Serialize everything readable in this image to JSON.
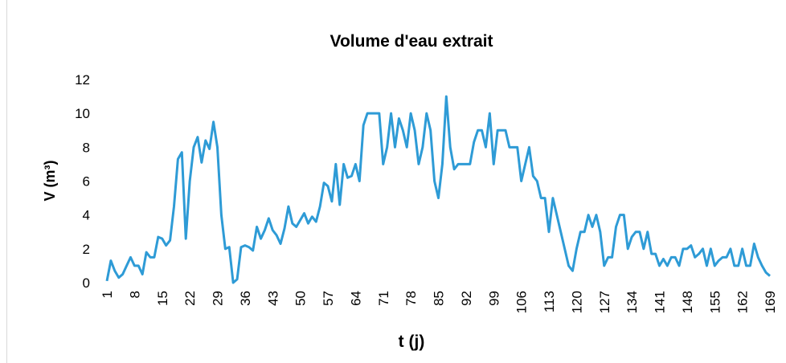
{
  "chart_data": {
    "type": "line",
    "title": "Volume d'eau extrait",
    "x_label": "t (j)",
    "y_label": "V (m³)",
    "x": [
      1,
      2,
      3,
      4,
      5,
      6,
      7,
      8,
      9,
      10,
      11,
      12,
      13,
      14,
      15,
      16,
      17,
      18,
      19,
      20,
      21,
      22,
      23,
      24,
      25,
      26,
      27,
      28,
      29,
      30,
      31,
      32,
      33,
      34,
      35,
      36,
      37,
      38,
      39,
      40,
      41,
      42,
      43,
      44,
      45,
      46,
      47,
      48,
      49,
      50,
      51,
      52,
      53,
      54,
      55,
      56,
      57,
      58,
      59,
      60,
      61,
      62,
      63,
      64,
      65,
      66,
      67,
      68,
      69,
      70,
      71,
      72,
      73,
      74,
      75,
      76,
      77,
      78,
      79,
      80,
      81,
      82,
      83,
      84,
      85,
      86,
      87,
      88,
      89,
      90,
      91,
      92,
      93,
      94,
      95,
      96,
      97,
      98,
      99,
      100,
      101,
      102,
      103,
      104,
      105,
      106,
      107,
      108,
      109,
      110,
      111,
      112,
      113,
      114,
      115,
      116,
      117,
      118,
      119,
      120,
      121,
      122,
      123,
      124,
      125,
      126,
      127,
      128,
      129,
      130,
      131,
      132,
      133,
      134,
      135,
      136,
      137,
      138,
      139,
      140,
      141,
      142,
      143,
      144,
      145,
      146,
      147,
      148,
      149,
      150,
      151,
      152,
      153,
      154,
      155,
      156,
      157,
      158,
      159,
      160,
      161,
      162,
      163,
      164,
      165,
      166,
      167,
      168,
      169
    ],
    "series": [
      {
        "name": "V",
        "color": "#2e9bd6",
        "values": [
          0.1,
          1.3,
          0.7,
          0.3,
          0.5,
          1.0,
          1.5,
          1.0,
          1.0,
          0.5,
          1.8,
          1.5,
          1.5,
          2.7,
          2.6,
          2.2,
          2.5,
          4.5,
          7.3,
          7.7,
          2.6,
          6.0,
          8.0,
          8.6,
          7.1,
          8.4,
          7.9,
          9.5,
          8.0,
          4.0,
          2.0,
          2.1,
          0.0,
          0.2,
          2.1,
          2.2,
          2.1,
          1.9,
          3.3,
          2.6,
          3.1,
          3.8,
          3.1,
          2.8,
          2.3,
          3.2,
          4.5,
          3.5,
          3.3,
          3.7,
          4.1,
          3.5,
          3.9,
          3.6,
          4.5,
          5.9,
          5.7,
          4.8,
          7.0,
          4.6,
          7.0,
          6.2,
          6.3,
          7.0,
          6.0,
          9.3,
          10,
          10,
          10,
          10,
          7.0,
          8.0,
          10,
          8.0,
          9.7,
          9.0,
          8.0,
          10,
          9.0,
          7.0,
          8.0,
          10,
          9.0,
          6.0,
          5.0,
          7.0,
          11,
          8.0,
          6.7,
          7.0,
          7.0,
          7.0,
          7.0,
          8.3,
          9.0,
          9.0,
          8.0,
          10,
          7.0,
          9.0,
          9.0,
          9.0,
          8.0,
          8.0,
          8.0,
          6.0,
          7.0,
          8.0,
          6.3,
          6.0,
          5.0,
          5.0,
          3.0,
          5.0,
          4.0,
          3.0,
          2.0,
          1.0,
          0.7,
          2.0,
          3.0,
          3.0,
          4.0,
          3.3,
          4.0,
          3.0,
          1.0,
          1.5,
          1.5,
          3.3,
          4.0,
          4.0,
          2.0,
          2.7,
          3.0,
          3.0,
          2.0,
          3.0,
          1.7,
          1.7,
          1.0,
          1.4,
          1.0,
          1.5,
          1.5,
          1.0,
          2.0,
          2.0,
          2.2,
          1.5,
          1.7,
          2.0,
          1.0,
          2.0,
          1.0,
          1.3,
          1.5,
          1.5,
          2.0,
          1.0,
          1.0,
          2.0,
          1.0,
          1.0,
          2.3,
          1.5,
          1.0,
          0.6,
          0.4
        ]
      }
    ],
    "xlim": [
      1,
      169
    ],
    "xticks": [
      1,
      8,
      15,
      22,
      29,
      36,
      43,
      50,
      57,
      64,
      71,
      78,
      85,
      92,
      99,
      106,
      113,
      120,
      127,
      134,
      141,
      148,
      155,
      162,
      169
    ],
    "ylim": [
      0,
      12
    ],
    "yticks": [
      0,
      2,
      4,
      6,
      8,
      10,
      12
    ],
    "grid": false
  }
}
